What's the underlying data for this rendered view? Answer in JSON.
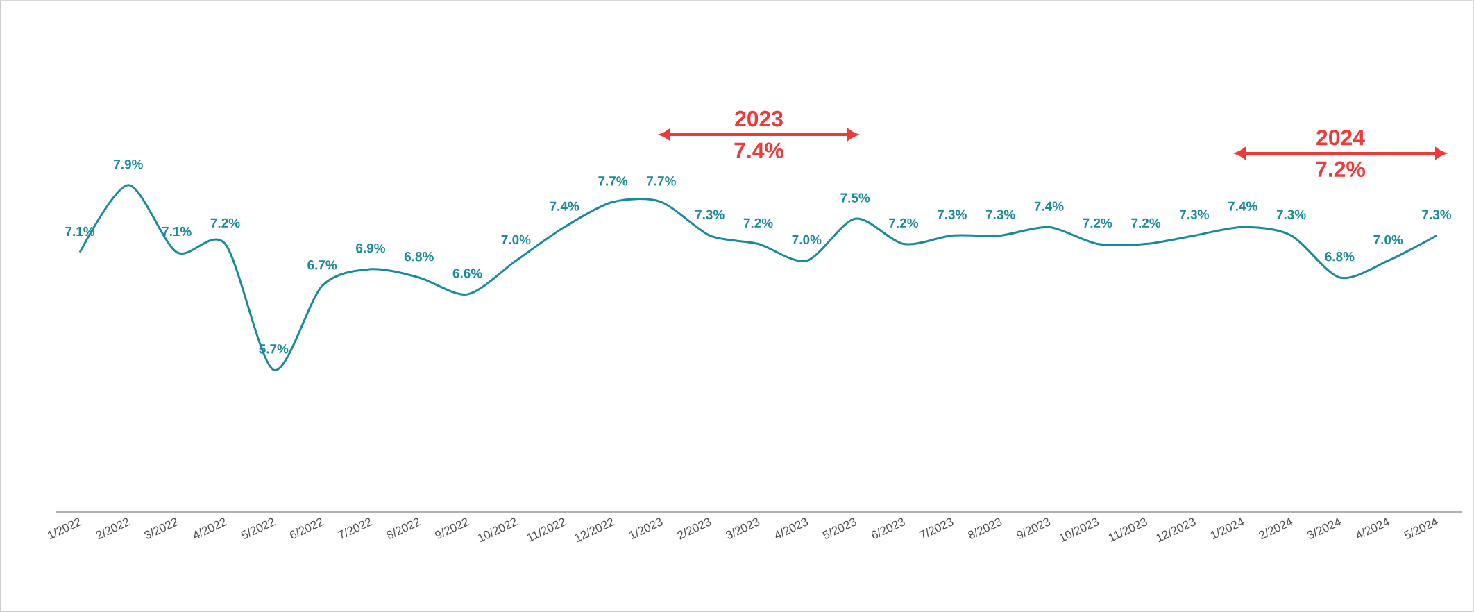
{
  "chart_data": {
    "type": "line",
    "categories": [
      "1/2022",
      "2/2022",
      "3/2022",
      "4/2022",
      "5/2022",
      "6/2022",
      "7/2022",
      "8/2022",
      "9/2022",
      "10/2022",
      "11/2022",
      "12/2022",
      "1/2023",
      "2/2023",
      "3/2023",
      "4/2023",
      "5/2023",
      "6/2023",
      "7/2023",
      "8/2023",
      "9/2023",
      "10/2023",
      "11/2023",
      "12/2023",
      "1/2024",
      "2/2024",
      "3/2024",
      "4/2024",
      "5/2024"
    ],
    "series": [
      {
        "color": "#1a8a9a",
        "values": [
          7.1,
          7.9,
          7.1,
          7.2,
          5.7,
          6.7,
          6.9,
          6.8,
          6.6,
          7.0,
          7.4,
          7.7,
          7.7,
          7.3,
          7.2,
          7.0,
          7.5,
          7.2,
          7.3,
          7.3,
          7.4,
          7.2,
          7.2,
          7.3,
          7.4,
          7.3,
          6.8,
          7.0,
          7.3
        ],
        "value_labels": [
          "7.1%",
          "7.9%",
          "7.1%",
          "7.2%",
          "5.7%",
          "6.7%",
          "6.9%",
          "6.8%",
          "6.6%",
          "7.0%",
          "7.4%",
          "7.7%",
          "7.7%",
          "7.3%",
          "7.2%",
          "7.0%",
          "7.5%",
          "7.2%",
          "7.3%",
          "7.3%",
          "7.4%",
          "7.2%",
          "7.2%",
          "7.3%",
          "7.4%",
          "7.3%",
          "6.8%",
          "7.0%",
          "7.3%"
        ]
      }
    ],
    "tick_labels": "x",
    "marker": "none",
    "line_style": "solid",
    "annotations": [
      "2023",
      "7.4%",
      "2024",
      "7.2%"
    ]
  }
}
